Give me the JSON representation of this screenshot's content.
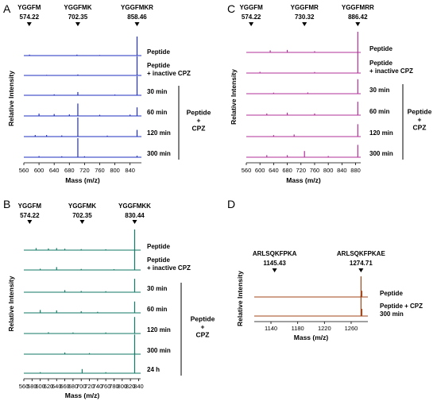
{
  "chart_data": [
    {
      "panel": "A",
      "type": "line",
      "color": "#1f2fbf",
      "xlabel": "Mass (m/z)",
      "ylabel": "Relative Intensity",
      "xlim": [
        560,
        870
      ],
      "x_ticks": [
        560,
        600,
        640,
        680,
        720,
        760,
        800,
        840
      ],
      "peak_labels": [
        {
          "name": "YGGFM",
          "mass": "574.22",
          "x": 574.22
        },
        {
          "name": "YGGFMK",
          "mass": "702.35",
          "x": 702.35
        },
        {
          "name": "YGGFMKR",
          "mass": "858.46",
          "x": 858.46
        }
      ],
      "series": [
        {
          "name": "Peptide",
          "peaks": [
            [
              858.46,
              1.0
            ],
            [
              575,
              0.05
            ],
            [
              700,
              0.05
            ],
            [
              760,
              0.03
            ]
          ]
        },
        {
          "name": "Peptide + inactive CPZ",
          "peaks": [
            [
              858.46,
              1.0
            ],
            [
              702.35,
              0.05
            ],
            [
              620,
              0.03
            ]
          ]
        },
        {
          "name": "30 min",
          "peaks": [
            [
              858.46,
              1.0
            ],
            [
              702.35,
              0.17
            ],
            [
              640,
              0.05
            ],
            [
              800,
              0.04
            ]
          ]
        },
        {
          "name": "60 min",
          "peaks": [
            [
              858.46,
              0.45
            ],
            [
              702.35,
              0.65
            ],
            [
              600,
              0.12
            ],
            [
              640,
              0.1
            ],
            [
              680,
              0.08
            ],
            [
              760,
              0.06
            ],
            [
              840,
              0.07
            ]
          ]
        },
        {
          "name": "120 min",
          "peaks": [
            [
              858.46,
              0.35
            ],
            [
              702.35,
              1.0
            ],
            [
              590,
              0.08
            ],
            [
              620,
              0.08
            ],
            [
              660,
              0.06
            ],
            [
              780,
              0.05
            ]
          ]
        },
        {
          "name": "300 min",
          "peaks": [
            [
              702.35,
              1.0
            ],
            [
              858.46,
              0.08
            ],
            [
              600,
              0.06
            ],
            [
              660,
              0.05
            ],
            [
              720,
              0.05
            ]
          ]
        }
      ],
      "bracket_label": [
        "Peptide",
        "+",
        "CPZ"
      ]
    },
    {
      "panel": "B",
      "type": "line",
      "color": "#127a66",
      "xlabel": "Mass (m/z)",
      "ylabel": "Relative Intensity",
      "xlim": [
        560,
        845
      ],
      "x_ticks": [
        560,
        580,
        600,
        620,
        640,
        660,
        680,
        700,
        720,
        740,
        760,
        780,
        800,
        820,
        840
      ],
      "peak_labels": [
        {
          "name": "YGGFM",
          "mass": "574.22",
          "x": 574.22
        },
        {
          "name": "YGGFMK",
          "mass": "702.35",
          "x": 702.35
        },
        {
          "name": "YGGFMKK",
          "mass": "830.44",
          "x": 830.44
        }
      ],
      "series": [
        {
          "name": "Peptide",
          "peaks": [
            [
              830.44,
              1.0
            ],
            [
              590,
              0.1
            ],
            [
              620,
              0.08
            ],
            [
              640,
              0.1
            ],
            [
              660,
              0.07
            ],
            [
              700,
              0.05
            ],
            [
              760,
              0.04
            ]
          ]
        },
        {
          "name": "Peptide + inactive CPZ",
          "peaks": [
            [
              830.44,
              1.0
            ],
            [
              640,
              0.14
            ],
            [
              600,
              0.06
            ],
            [
              700,
              0.05
            ],
            [
              780,
              0.04
            ]
          ]
        },
        {
          "name": "30 min",
          "peaks": [
            [
              830.44,
              0.65
            ],
            [
              660,
              0.1
            ],
            [
              700,
              0.06
            ],
            [
              760,
              0.05
            ]
          ]
        },
        {
          "name": "60 min",
          "peaks": [
            [
              830.44,
              0.55
            ],
            [
              600,
              0.14
            ],
            [
              640,
              0.12
            ],
            [
              700,
              0.08
            ],
            [
              740,
              0.05
            ]
          ]
        },
        {
          "name": "120 min",
          "peaks": [
            [
              830.44,
              0.8
            ],
            [
              620,
              0.06
            ],
            [
              680,
              0.05
            ],
            [
              760,
              0.05
            ]
          ]
        },
        {
          "name": "300 min",
          "peaks": [
            [
              830.44,
              0.95
            ],
            [
              660,
              0.08
            ],
            [
              720,
              0.05
            ]
          ]
        },
        {
          "name": "24 h",
          "peaks": [
            [
              830.44,
              1.0
            ],
            [
              702.35,
              0.2
            ],
            [
              600,
              0.05
            ],
            [
              760,
              0.05
            ]
          ]
        }
      ],
      "bracket_label": [
        "Peptide",
        "+",
        "CPZ"
      ]
    },
    {
      "panel": "C",
      "type": "line",
      "color": "#b0309a",
      "xlabel": "Mass (m/z)",
      "ylabel": "Relative Intensity",
      "xlim": [
        560,
        895
      ],
      "x_ticks": [
        560,
        600,
        640,
        680,
        720,
        760,
        800,
        840,
        880
      ],
      "peak_labels": [
        {
          "name": "YGGFM",
          "mass": "574.22",
          "x": 574.22
        },
        {
          "name": "YGGFMR",
          "mass": "730.32",
          "x": 730.32
        },
        {
          "name": "YGGFMRR",
          "mass": "886.42",
          "x": 886.42
        }
      ],
      "series": [
        {
          "name": "Peptide",
          "peaks": [
            [
              886.42,
              1.0
            ],
            [
              630,
              0.1
            ],
            [
              680,
              0.12
            ],
            [
              760,
              0.06
            ]
          ]
        },
        {
          "name": "Peptide + inactive CPZ",
          "peaks": [
            [
              886.42,
              1.0
            ],
            [
              600,
              0.06
            ],
            [
              760,
              0.05
            ]
          ]
        },
        {
          "name": "30 min",
          "peaks": [
            [
              886.42,
              0.7
            ],
            [
              640,
              0.05
            ],
            [
              740,
              0.06
            ]
          ]
        },
        {
          "name": "60 min",
          "peaks": [
            [
              886.42,
              0.65
            ],
            [
              620,
              0.08
            ],
            [
              680,
              0.12
            ],
            [
              760,
              0.08
            ]
          ]
        },
        {
          "name": "120 min",
          "peaks": [
            [
              886.42,
              0.6
            ],
            [
              640,
              0.07
            ],
            [
              700,
              0.1
            ]
          ]
        },
        {
          "name": "300 min",
          "peaks": [
            [
              886.42,
              0.6
            ],
            [
              730.32,
              0.3
            ],
            [
              620,
              0.1
            ],
            [
              680,
              0.1
            ],
            [
              800,
              0.06
            ]
          ]
        }
      ],
      "bracket_label": [
        "Peptide",
        "+",
        "CPZ"
      ]
    },
    {
      "panel": "D",
      "type": "line",
      "color": "#a0461a",
      "xlabel": "Mass (m/z)",
      "ylabel": "Relative Intensity",
      "xlim": [
        1115,
        1285
      ],
      "x_ticks": [
        1140,
        1180,
        1220,
        1260
      ],
      "peak_labels": [
        {
          "name": "ARLSQKFPKA",
          "mass": "1145.43",
          "x": 1145.43
        },
        {
          "name": "ARLSQKFPKAE",
          "mass": "1274.71",
          "x": 1274.71
        }
      ],
      "series": [
        {
          "name": "Peptide",
          "peaks": [
            [
              1274.71,
              1.0
            ],
            [
              1276,
              0.3
            ]
          ]
        },
        {
          "name": "Peptide + CPZ 300 min",
          "peaks": [
            [
              1274.71,
              1.0
            ],
            [
              1276,
              0.35
            ]
          ]
        }
      ],
      "bracket_label": []
    }
  ]
}
